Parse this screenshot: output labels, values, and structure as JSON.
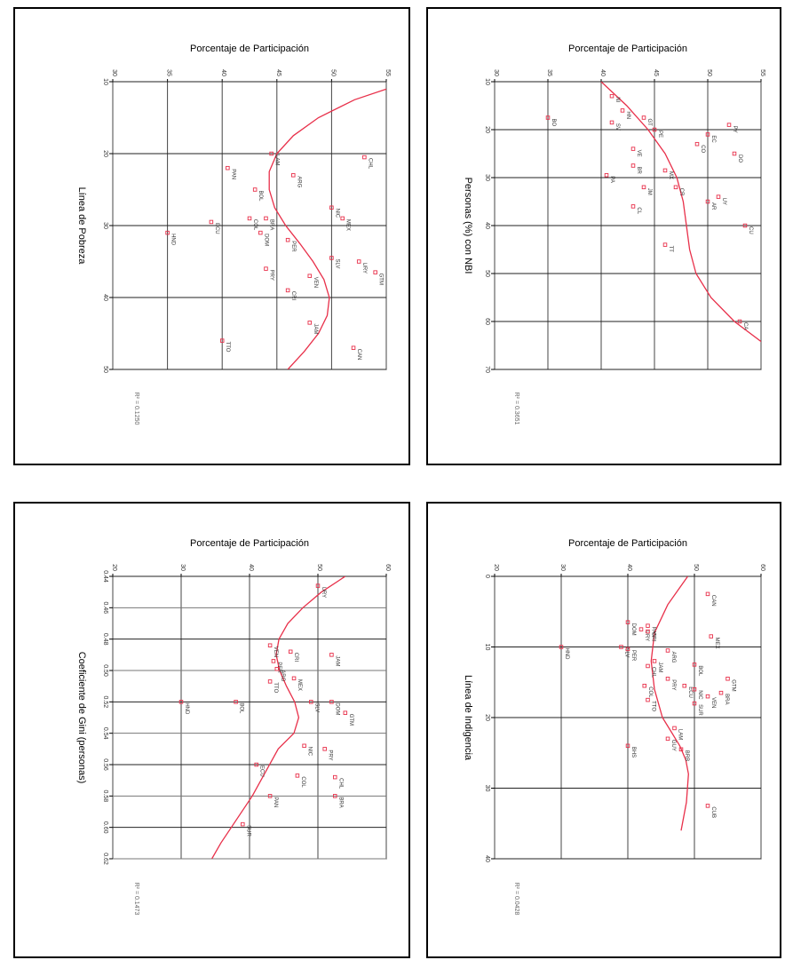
{
  "chart_data": [
    {
      "type": "scatter",
      "panel": "top-left",
      "title": "Porcentaje de Participación",
      "ylabel": "Línea de Pobreza",
      "r2_text": "R² = 0.1250",
      "x_ticks": [
        "30",
        "35",
        "40",
        "45",
        "50",
        "55"
      ],
      "xlim": [
        30,
        55
      ],
      "y_ticks": [
        "10",
        "20",
        "30",
        "40",
        "50"
      ],
      "ylim": [
        10,
        50
      ],
      "points": [
        {
          "x": 44.5,
          "y": 20,
          "label": "LAM"
        },
        {
          "x": 40.5,
          "y": 22,
          "label": "PAN"
        },
        {
          "x": 46.5,
          "y": 23,
          "label": "ARG"
        },
        {
          "x": 53,
          "y": 20.5,
          "label": "CHL"
        },
        {
          "x": 43,
          "y": 25,
          "label": "BOL"
        },
        {
          "x": 50,
          "y": 27.5,
          "label": "NIC"
        },
        {
          "x": 42.5,
          "y": 29,
          "label": "COL"
        },
        {
          "x": 39,
          "y": 29.5,
          "label": "ECU"
        },
        {
          "x": 44,
          "y": 29,
          "label": "BRA"
        },
        {
          "x": 51,
          "y": 29,
          "label": "MEX"
        },
        {
          "x": 35,
          "y": 31,
          "label": "HND"
        },
        {
          "x": 43.5,
          "y": 31,
          "label": "DOM"
        },
        {
          "x": 46,
          "y": 32,
          "label": "PER"
        },
        {
          "x": 50,
          "y": 34.5,
          "label": "SLV"
        },
        {
          "x": 52.5,
          "y": 35,
          "label": "URY"
        },
        {
          "x": 44,
          "y": 36,
          "label": "PRY"
        },
        {
          "x": 54,
          "y": 36.5,
          "label": "GTM"
        },
        {
          "x": 48,
          "y": 37,
          "label": "VEN"
        },
        {
          "x": 46,
          "y": 39,
          "label": "CRI"
        },
        {
          "x": 48,
          "y": 43.5,
          "label": "JAM"
        },
        {
          "x": 40,
          "y": 46,
          "label": "TTO"
        },
        {
          "x": 52,
          "y": 47,
          "label": "CAN"
        }
      ],
      "curve_x": [
        57.0,
        52.1,
        48.8,
        46.5,
        45.0,
        44.3,
        44.3,
        44.8,
        45.8,
        47.1,
        48.3,
        49.3,
        49.8,
        49.6,
        48.8,
        47.5,
        46.0
      ],
      "curve_y": [
        10,
        12.5,
        15,
        17.5,
        20,
        22.5,
        25,
        27.5,
        30,
        32.5,
        35,
        37.5,
        40,
        42.5,
        45,
        47.5,
        50
      ]
    },
    {
      "type": "scatter",
      "panel": "top-right",
      "title": "Porcentaje de Participación",
      "ylabel": "Personas (%) con NBI",
      "r2_text": "R² = 0.3651",
      "x_ticks": [
        "30",
        "35",
        "40",
        "45",
        "50",
        "55"
      ],
      "xlim": [
        30,
        55
      ],
      "y_ticks": [
        "10",
        "20",
        "30",
        "40",
        "50",
        "60",
        "70"
      ],
      "ylim": [
        10,
        70
      ],
      "points": [
        {
          "x": 35,
          "y": 17.5,
          "label": "BO"
        },
        {
          "x": 41,
          "y": 13,
          "label": "NI"
        },
        {
          "x": 42,
          "y": 16,
          "label": "HN"
        },
        {
          "x": 44,
          "y": 17.5,
          "label": "GT"
        },
        {
          "x": 41,
          "y": 18.5,
          "label": "SV"
        },
        {
          "x": 45,
          "y": 20,
          "label": "PE"
        },
        {
          "x": 50,
          "y": 21,
          "label": "EC"
        },
        {
          "x": 52,
          "y": 19,
          "label": "PY"
        },
        {
          "x": 49,
          "y": 23,
          "label": "CO"
        },
        {
          "x": 52.5,
          "y": 25,
          "label": "DO"
        },
        {
          "x": 43,
          "y": 24,
          "label": "VE"
        },
        {
          "x": 43,
          "y": 27.5,
          "label": "BR"
        },
        {
          "x": 46,
          "y": 28.5,
          "label": "MX"
        },
        {
          "x": 40.5,
          "y": 29.5,
          "label": "PA"
        },
        {
          "x": 47,
          "y": 32,
          "label": "CR"
        },
        {
          "x": 44,
          "y": 32,
          "label": "JM"
        },
        {
          "x": 50,
          "y": 35,
          "label": "AR"
        },
        {
          "x": 51,
          "y": 34,
          "label": "UY"
        },
        {
          "x": 43,
          "y": 36,
          "label": "CL"
        },
        {
          "x": 53.5,
          "y": 40,
          "label": "CU"
        },
        {
          "x": 46,
          "y": 44,
          "label": "TT"
        },
        {
          "x": 53,
          "y": 60,
          "label": "CA"
        }
      ],
      "curve_x": [
        40.0,
        42.4,
        44.4,
        46.0,
        47.1,
        47.7,
        48.0,
        48.3,
        48.9,
        50.3,
        52.5,
        55.5
      ],
      "curve_y": [
        10,
        15,
        20,
        25,
        30,
        35,
        40,
        45,
        50,
        55,
        60,
        65
      ]
    },
    {
      "type": "scatter",
      "panel": "bottom-left",
      "title": "Porcentaje de Participación",
      "ylabel": "Coeficiente de Gini (personas)",
      "r2_text": "R² = 0.1473",
      "x_ticks": [
        "20",
        "30",
        "40",
        "50",
        "60"
      ],
      "xlim": [
        20,
        60
      ],
      "y_ticks": [
        "0.44",
        "0.46",
        "0.48",
        "0.50",
        "0.52",
        "0.54",
        "0.56",
        "0.58",
        "0.60",
        "0.62"
      ],
      "ylim": [
        0.44,
        0.62
      ],
      "points": [
        {
          "x": 50,
          "y": 0.446,
          "label": "URY"
        },
        {
          "x": 43,
          "y": 0.484,
          "label": "VEN"
        },
        {
          "x": 46,
          "y": 0.488,
          "label": "CRI"
        },
        {
          "x": 52,
          "y": 0.49,
          "label": "JAM"
        },
        {
          "x": 43.5,
          "y": 0.494,
          "label": "PER"
        },
        {
          "x": 44,
          "y": 0.499,
          "label": "ARG"
        },
        {
          "x": 46.5,
          "y": 0.505,
          "label": "MEX"
        },
        {
          "x": 43,
          "y": 0.507,
          "label": "TTO"
        },
        {
          "x": 30,
          "y": 0.52,
          "label": "HND"
        },
        {
          "x": 38,
          "y": 0.52,
          "label": "BOL"
        },
        {
          "x": 49,
          "y": 0.52,
          "label": "SLV"
        },
        {
          "x": 52,
          "y": 0.52,
          "label": "DOM"
        },
        {
          "x": 54,
          "y": 0.527,
          "label": "GTM"
        },
        {
          "x": 48,
          "y": 0.548,
          "label": "NIC"
        },
        {
          "x": 51,
          "y": 0.55,
          "label": "PRY"
        },
        {
          "x": 41,
          "y": 0.56,
          "label": "ECU"
        },
        {
          "x": 47,
          "y": 0.567,
          "label": "COL"
        },
        {
          "x": 52.5,
          "y": 0.568,
          "label": "CHL"
        },
        {
          "x": 43,
          "y": 0.58,
          "label": "PAN"
        },
        {
          "x": 52.5,
          "y": 0.58,
          "label": "BRA"
        },
        {
          "x": 39,
          "y": 0.598,
          "label": "SUR"
        }
      ],
      "curve_x": [
        54.0,
        50.5,
        47.8,
        45.6,
        44.3,
        43.9,
        44.4,
        45.4,
        46.6,
        47.2,
        46.5,
        44.2,
        40.4,
        35.8,
        34.5
      ],
      "curve_y": [
        0.44,
        0.45,
        0.46,
        0.47,
        0.48,
        0.49,
        0.5,
        0.51,
        0.52,
        0.53,
        0.54,
        0.55,
        0.58,
        0.61,
        0.62
      ]
    },
    {
      "type": "scatter",
      "panel": "bottom-right",
      "title": "Porcentaje de Participación",
      "ylabel": "Línea de Indigencia",
      "r2_text": "R² = 0.0428",
      "x_ticks": [
        "20",
        "30",
        "40",
        "50",
        "60"
      ],
      "xlim": [
        20,
        60
      ],
      "y_ticks": [
        "0",
        "10",
        "20",
        "30",
        "40"
      ],
      "ylim": [
        0,
        40
      ],
      "points": [
        {
          "x": 52,
          "y": 2.5,
          "label": "CAN"
        },
        {
          "x": 40,
          "y": 6.5,
          "label": "DOM"
        },
        {
          "x": 43,
          "y": 7,
          "label": "PAN"
        },
        {
          "x": 42,
          "y": 7.5,
          "label": "URY"
        },
        {
          "x": 43,
          "y": 7.8,
          "label": "CRI"
        },
        {
          "x": 52.5,
          "y": 8.5,
          "label": "MEX"
        },
        {
          "x": 30,
          "y": 10,
          "label": "HND"
        },
        {
          "x": 39,
          "y": 10,
          "label": "SLV"
        },
        {
          "x": 40,
          "y": 10.3,
          "label": "PER"
        },
        {
          "x": 46,
          "y": 10.5,
          "label": "ARG"
        },
        {
          "x": 44,
          "y": 12,
          "label": "JAM"
        },
        {
          "x": 50,
          "y": 12.5,
          "label": "BOL"
        },
        {
          "x": 43,
          "y": 12.7,
          "label": "CHL"
        },
        {
          "x": 55,
          "y": 14.5,
          "label": "GTM"
        },
        {
          "x": 46,
          "y": 14.5,
          "label": "PRY"
        },
        {
          "x": 42.5,
          "y": 15.5,
          "label": "COL"
        },
        {
          "x": 48.5,
          "y": 15.5,
          "label": "ECU"
        },
        {
          "x": 50,
          "y": 16,
          "label": "NIC"
        },
        {
          "x": 54,
          "y": 16.5,
          "label": "BRA"
        },
        {
          "x": 52,
          "y": 17,
          "label": "VEN"
        },
        {
          "x": 43,
          "y": 17.5,
          "label": "TTO"
        },
        {
          "x": 50,
          "y": 18,
          "label": "SUR"
        },
        {
          "x": 47,
          "y": 21.5,
          "label": "LAM"
        },
        {
          "x": 46,
          "y": 23,
          "label": "GUY"
        },
        {
          "x": 40,
          "y": 24,
          "label": "BHS"
        },
        {
          "x": 48,
          "y": 24.5,
          "label": "BRB"
        },
        {
          "x": 52,
          "y": 32.5,
          "label": "CUB"
        }
      ],
      "curve_x": [
        49.0,
        46.0,
        44.0,
        43.5,
        44.0,
        45.2,
        46.5,
        47.8,
        48.7,
        49.1,
        48.8,
        48.0
      ],
      "curve_y": [
        0,
        4,
        8,
        12,
        16,
        20,
        22,
        24,
        26,
        28,
        32,
        36
      ]
    }
  ]
}
